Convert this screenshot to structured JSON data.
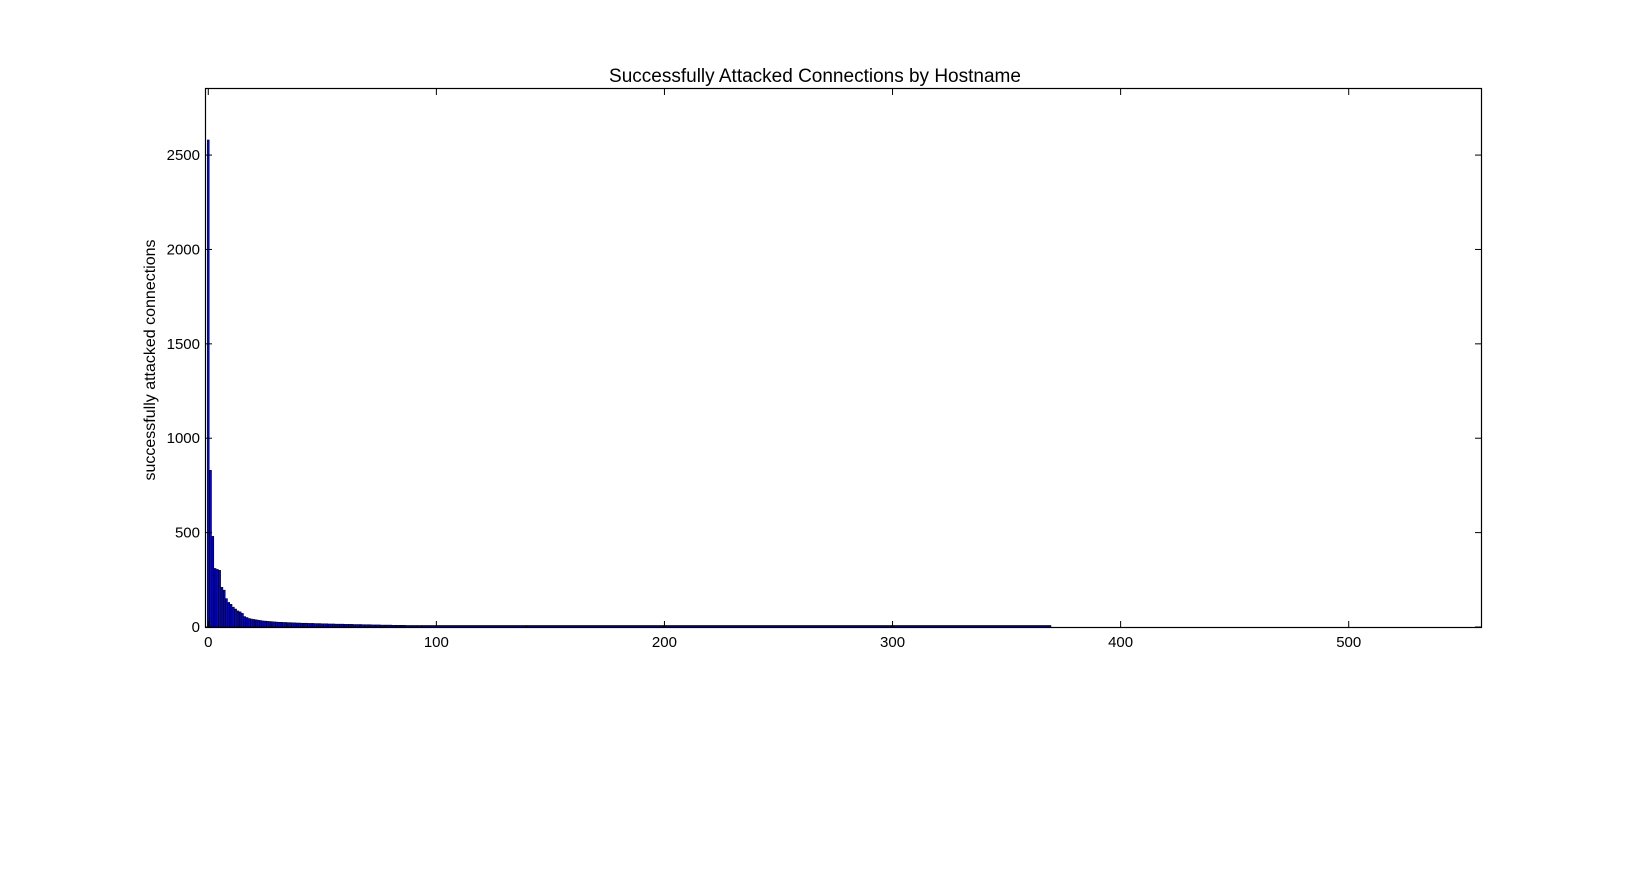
{
  "chart_data": {
    "type": "bar",
    "title": "Successfully Attacked Connections by Hostname",
    "xlabel": "",
    "ylabel": "successfully attacked connections",
    "xlim": [
      -1,
      558
    ],
    "ylim": [
      0,
      2850
    ],
    "xticks": [
      0,
      100,
      200,
      300,
      400,
      500
    ],
    "yticks": [
      0,
      500,
      1000,
      1500,
      2000,
      2500
    ],
    "grid": false,
    "legend": "none",
    "bar_color": "#0000ff",
    "edge_color": "#000000",
    "head_values": [
      2580,
      830,
      480,
      310,
      305,
      300,
      210,
      195,
      150,
      130,
      120,
      105,
      95,
      85,
      80,
      72,
      55,
      50,
      45,
      42,
      40,
      38,
      36,
      34,
      32,
      31,
      30,
      29,
      28,
      27,
      26,
      25,
      25,
      24,
      24,
      23,
      23,
      22,
      22,
      21,
      21,
      20,
      20,
      20,
      19,
      19,
      19,
      18,
      18,
      18,
      17,
      17,
      17,
      16,
      16,
      16,
      15,
      15,
      15,
      15,
      14,
      14,
      14,
      14,
      13,
      13,
      13,
      13,
      12,
      12,
      12,
      12,
      11,
      11,
      11,
      11,
      10,
      10,
      10,
      10,
      10,
      9,
      9,
      9,
      9,
      9,
      9,
      8,
      8,
      8,
      8,
      8,
      8,
      8
    ],
    "tail": [
      {
        "start": 94,
        "end": 140,
        "value": 7
      },
      {
        "start": 140,
        "end": 200,
        "value": 4
      },
      {
        "start": 200,
        "end": 300,
        "value": 3
      },
      {
        "start": 300,
        "end": 370,
        "value": 2
      },
      {
        "start": 370,
        "end": 558,
        "value": 0
      }
    ]
  }
}
